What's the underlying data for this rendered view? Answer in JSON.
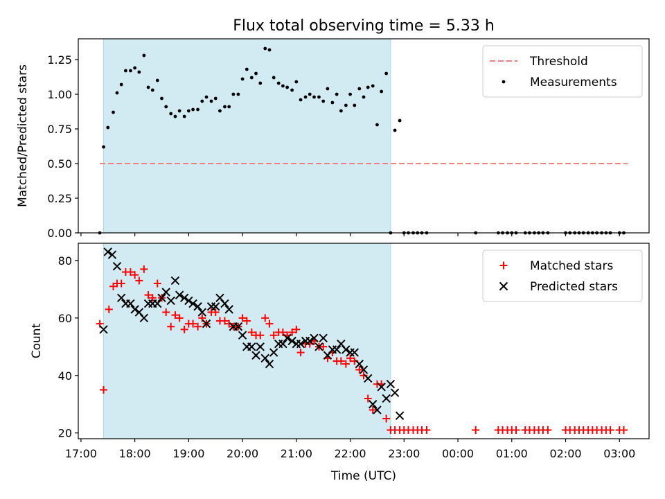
{
  "figure": {
    "title": "Flux total observing time = 5.33 h",
    "xlabel": "Time (UTC)"
  },
  "colors": {
    "shade": "#add8e6",
    "threshold": "#f08080",
    "measurements": "#000000",
    "matched": "#ff0000",
    "predicted": "#000000"
  },
  "chart_data": [
    {
      "type": "scatter",
      "ylabel": "Matched/Predicted stars",
      "xlim": [
        16.95,
        27.55
      ],
      "ylim": [
        0,
        1.4
      ],
      "x_ticks": [
        17,
        18,
        19,
        20,
        21,
        22,
        23,
        24,
        25,
        26,
        27
      ],
      "x_tick_labels": [
        "17:00",
        "18:00",
        "19:00",
        "20:00",
        "21:00",
        "22:00",
        "23:00",
        "00:00",
        "01:00",
        "02:00",
        "03:00"
      ],
      "y_ticks": [
        0,
        0.25,
        0.5,
        0.75,
        1.0,
        1.25
      ],
      "y_tick_labels": [
        "0.00",
        "0.25",
        "0.50",
        "0.75",
        "1.00",
        "1.25"
      ],
      "shaded_interval": [
        17.42,
        22.75
      ],
      "legend_position": "top-right",
      "threshold": {
        "name": "Threshold",
        "y": 0.5,
        "x_range": [
          17.35,
          27.15
        ]
      },
      "series": [
        {
          "name": "Measurements",
          "x": [
            17.35,
            17.42,
            17.5,
            17.6,
            17.67,
            17.75,
            17.83,
            17.92,
            18.0,
            18.08,
            18.17,
            18.25,
            18.33,
            18.42,
            18.5,
            18.58,
            18.67,
            18.75,
            18.83,
            18.92,
            19.0,
            19.08,
            19.17,
            19.25,
            19.33,
            19.42,
            19.5,
            19.58,
            19.67,
            19.75,
            19.83,
            19.92,
            20.0,
            20.08,
            20.17,
            20.25,
            20.33,
            20.42,
            20.5,
            20.58,
            20.67,
            20.75,
            20.83,
            20.92,
            21.0,
            21.08,
            21.17,
            21.25,
            21.33,
            21.42,
            21.5,
            21.58,
            21.67,
            21.75,
            21.83,
            21.92,
            22.0,
            22.08,
            22.17,
            22.25,
            22.33,
            22.42,
            22.5,
            22.58,
            22.67,
            22.75,
            22.83,
            22.92,
            23.0,
            23.08,
            23.17,
            23.25,
            23.33,
            23.42,
            24.33,
            24.75,
            24.83,
            24.92,
            25.0,
            25.08,
            25.25,
            25.33,
            25.42,
            25.5,
            25.58,
            25.67,
            26.0,
            26.08,
            26.17,
            26.25,
            26.33,
            26.42,
            26.5,
            26.58,
            26.67,
            26.75,
            26.83,
            27.0,
            27.08
          ],
          "y": [
            0.0,
            0.62,
            0.76,
            0.87,
            1.01,
            1.07,
            1.17,
            1.17,
            1.19,
            1.16,
            1.28,
            1.05,
            1.03,
            1.1,
            0.97,
            0.91,
            0.86,
            0.84,
            0.88,
            0.84,
            0.88,
            0.89,
            0.89,
            0.95,
            0.98,
            0.95,
            0.97,
            0.88,
            0.91,
            0.91,
            1.0,
            1.0,
            1.11,
            1.18,
            1.12,
            1.15,
            1.08,
            1.33,
            1.32,
            1.12,
            1.08,
            1.06,
            1.05,
            1.03,
            1.09,
            0.96,
            0.98,
            1.0,
            0.98,
            0.98,
            0.95,
            1.04,
            0.94,
            1.0,
            0.88,
            0.92,
            1.0,
            0.92,
            1.04,
            0.98,
            1.05,
            1.06,
            0.78,
            1.02,
            1.15,
            0.0,
            0.74,
            0.81,
            0.0,
            0.0,
            0.0,
            0.0,
            0.0,
            0.0,
            0.0,
            0.0,
            0.0,
            0.0,
            0.0,
            0.0,
            0.0,
            0.0,
            0.0,
            0.0,
            0.0,
            0.0,
            0.0,
            0.0,
            0.0,
            0.0,
            0.0,
            0.0,
            0.0,
            0.0,
            0.0,
            0.0,
            0.0,
            0.0,
            0.0
          ]
        }
      ]
    },
    {
      "type": "scatter",
      "ylabel": "Count",
      "xlim": [
        16.95,
        27.55
      ],
      "ylim": [
        18,
        86
      ],
      "x_ticks": [
        17,
        18,
        19,
        20,
        21,
        22,
        23,
        24,
        25,
        26,
        27
      ],
      "x_tick_labels": [
        "17:00",
        "18:00",
        "19:00",
        "20:00",
        "21:00",
        "22:00",
        "23:00",
        "00:00",
        "01:00",
        "02:00",
        "03:00"
      ],
      "y_ticks": [
        20,
        40,
        60,
        80
      ],
      "y_tick_labels": [
        "20",
        "40",
        "60",
        "80"
      ],
      "shaded_interval": [
        17.42,
        22.75
      ],
      "legend_position": "top-right",
      "series": [
        {
          "name": "Matched stars",
          "x": [
            17.35,
            17.42,
            17.52,
            17.6,
            17.67,
            17.75,
            17.83,
            17.92,
            18.0,
            18.08,
            18.17,
            18.25,
            18.33,
            18.42,
            18.5,
            18.58,
            18.67,
            18.75,
            18.83,
            18.92,
            19.0,
            19.08,
            19.17,
            19.25,
            19.33,
            19.42,
            19.5,
            19.58,
            19.67,
            19.75,
            19.83,
            19.92,
            20.0,
            20.08,
            20.17,
            20.25,
            20.33,
            20.42,
            20.5,
            20.58,
            20.67,
            20.75,
            20.83,
            20.92,
            21.0,
            21.08,
            21.17,
            21.25,
            21.33,
            21.42,
            21.5,
            21.58,
            21.67,
            21.75,
            21.83,
            21.92,
            22.0,
            22.08,
            22.17,
            22.25,
            22.33,
            22.42,
            22.5,
            22.58,
            22.67,
            22.75,
            22.83,
            22.92,
            23.0,
            23.08,
            23.17,
            23.25,
            23.33,
            23.42,
            24.33,
            24.75,
            24.83,
            24.92,
            25.0,
            25.08,
            25.25,
            25.33,
            25.42,
            25.5,
            25.58,
            25.67,
            26.0,
            26.08,
            26.17,
            26.25,
            26.33,
            26.42,
            26.5,
            26.58,
            26.67,
            26.75,
            26.83,
            27.0,
            27.08
          ],
          "y": [
            58,
            35,
            63,
            71,
            72,
            72,
            76,
            76,
            75,
            73,
            77,
            68,
            67,
            72,
            67,
            62,
            57,
            61,
            60,
            56,
            58,
            58,
            57,
            60,
            58,
            62,
            62,
            59,
            59,
            58,
            57,
            57,
            60,
            59,
            55,
            54,
            54,
            60,
            58,
            54,
            55,
            55,
            54,
            55,
            56,
            48,
            51,
            51,
            52,
            50,
            50,
            46,
            48,
            45,
            45,
            44,
            46,
            45,
            42,
            40,
            32,
            28,
            37,
            37,
            25,
            21,
            21,
            21,
            21,
            21,
            21,
            21,
            21,
            21,
            21,
            21,
            21,
            21,
            21,
            21,
            21,
            21,
            21,
            21,
            21,
            21,
            21,
            21,
            21,
            21,
            21,
            21,
            21,
            21,
            21,
            21,
            21,
            21,
            21
          ]
        },
        {
          "name": "Predicted stars",
          "x": [
            17.42,
            17.5,
            17.58,
            17.67,
            17.75,
            17.83,
            17.92,
            18.0,
            18.08,
            18.17,
            18.25,
            18.33,
            18.42,
            18.5,
            18.58,
            18.67,
            18.75,
            18.83,
            18.92,
            19.0,
            19.08,
            19.17,
            19.25,
            19.33,
            19.42,
            19.5,
            19.58,
            19.67,
            19.75,
            19.83,
            19.92,
            20.0,
            20.08,
            20.17,
            20.25,
            20.33,
            20.42,
            20.5,
            20.58,
            20.67,
            20.75,
            20.83,
            20.92,
            21.0,
            21.08,
            21.17,
            21.25,
            21.33,
            21.42,
            21.5,
            21.58,
            21.67,
            21.75,
            21.83,
            21.92,
            22.0,
            22.08,
            22.17,
            22.25,
            22.33,
            22.42,
            22.5,
            22.58,
            22.67,
            22.75,
            22.83,
            22.92
          ],
          "y": [
            56,
            83,
            82,
            78,
            67,
            65,
            65,
            63,
            62,
            60,
            65,
            65,
            65,
            67,
            69,
            66,
            73,
            68,
            67,
            66,
            65,
            64,
            62,
            58,
            64,
            64,
            67,
            65,
            63,
            57,
            57,
            54,
            50,
            50,
            47,
            50,
            46,
            44,
            48,
            51,
            51,
            53,
            52,
            51,
            51,
            52,
            52,
            53,
            50,
            53,
            47,
            49,
            49,
            51,
            49,
            48,
            48,
            44,
            42,
            39,
            30,
            28,
            36,
            32,
            37,
            34,
            26
          ]
        }
      ]
    }
  ]
}
